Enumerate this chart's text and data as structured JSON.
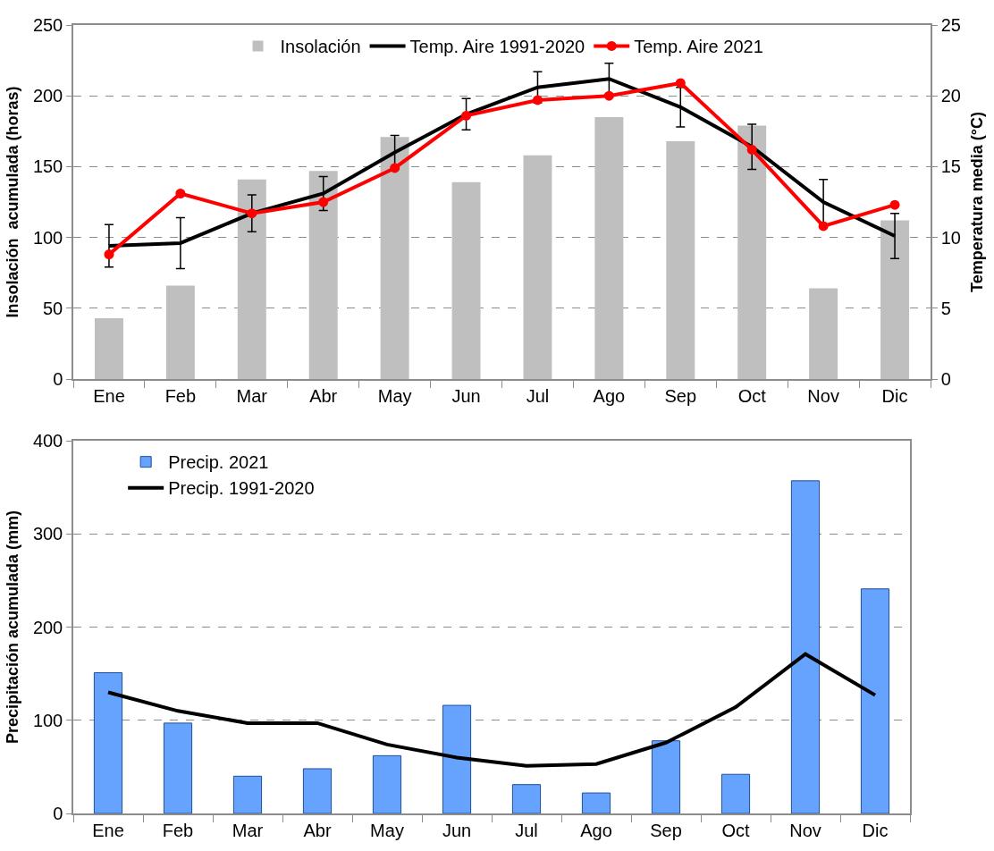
{
  "chart_data": [
    {
      "type": "bar",
      "categories": [
        "Ene",
        "Feb",
        "Mar",
        "Abr",
        "May",
        "Jun",
        "Jul",
        "Ago",
        "Sep",
        "Oct",
        "Nov",
        "Dic"
      ],
      "ylabel": "Insolación  acumulada (horas)",
      "y2label": "Temperatura media (°C)",
      "ylim": [
        0,
        250
      ],
      "yticks": [
        0,
        50,
        100,
        150,
        200,
        250
      ],
      "y2lim": [
        0,
        25
      ],
      "y2ticks": [
        0,
        5,
        10,
        15,
        20,
        25
      ],
      "grid": "y",
      "legend": "top",
      "series": [
        {
          "name": "Insolación",
          "color": "#bfbfbf",
          "values": [
            43,
            66,
            141,
            147,
            171,
            139,
            158,
            185,
            168,
            179,
            64,
            112
          ]
        },
        {
          "name": "Temp. Aire 1991-2020",
          "type": "line",
          "axis": "y2",
          "color": "#000000",
          "marker": "none",
          "values": [
            9.4,
            9.6,
            11.7,
            13.1,
            16.0,
            18.7,
            20.6,
            21.2,
            19.2,
            16.4,
            12.5,
            10.1
          ],
          "errors": [
            1.5,
            1.8,
            1.3,
            1.2,
            1.2,
            1.1,
            1.1,
            1.1,
            1.4,
            1.6,
            1.6,
            1.6
          ]
        },
        {
          "name": "Temp. Aire 2021",
          "type": "line",
          "axis": "y2",
          "color": "#ff0000",
          "marker": "circle",
          "values": [
            8.8,
            13.1,
            11.7,
            12.5,
            14.9,
            18.6,
            19.7,
            20.0,
            20.9,
            16.2,
            10.8,
            12.3
          ]
        }
      ]
    },
    {
      "type": "bar",
      "categories": [
        "Ene",
        "Feb",
        "Mar",
        "Abr",
        "May",
        "Jun",
        "Jul",
        "Ago",
        "Sep",
        "Oct",
        "Nov",
        "Dic"
      ],
      "ylabel": "Precipitación acumulada (mm)",
      "ylim": [
        0,
        400
      ],
      "yticks": [
        0,
        100,
        200,
        300,
        400
      ],
      "grid": "y",
      "legend": "top left",
      "series": [
        {
          "name": "Precip. 2021",
          "color": "#66a3ff",
          "values": [
            151,
            97,
            40,
            48,
            62,
            116,
            31,
            22,
            78,
            42,
            357,
            241
          ]
        },
        {
          "name": "Precip. 1991-2020",
          "type": "line",
          "color": "#000000",
          "marker": "none",
          "values": [
            130,
            110,
            97,
            97,
            74,
            60,
            51,
            53,
            76,
            114,
            171,
            127
          ]
        }
      ]
    }
  ]
}
